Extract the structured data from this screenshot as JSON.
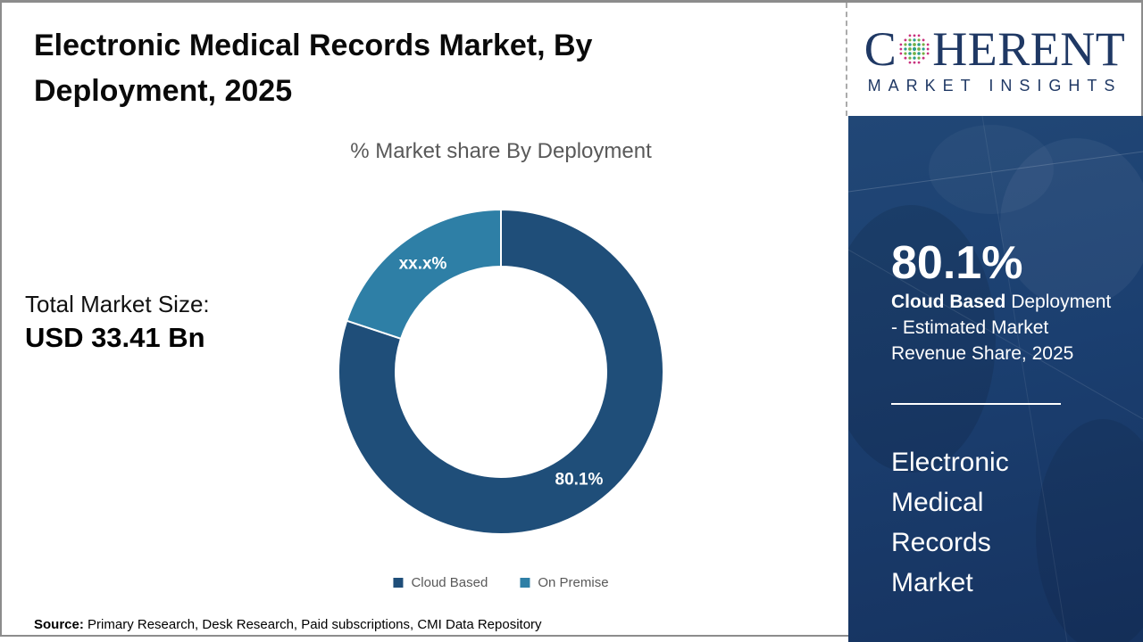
{
  "page": {
    "title": "Electronic Medical Records Market, By Deployment, 2025",
    "title_lines": [
      "Electronic Medical Records Market, By",
      "Deployment, 2025"
    ]
  },
  "logo": {
    "name": "Coherent Market Insights",
    "word_prefix": "C",
    "word_suffix": "HERENT",
    "tagline": "MARKET INSIGHTS",
    "navy": "#1F3864",
    "sphere_colors": {
      "teal": "#2BA08C",
      "green": "#76B043",
      "pink": "#C9317E"
    }
  },
  "total_market": {
    "label": "Total Market Size:",
    "value": "USD 33.41 Bn"
  },
  "chart_data": {
    "type": "donut",
    "title": "% Market share By Deployment",
    "categories": [
      "Cloud Based",
      "On Premise"
    ],
    "series": [
      {
        "name": "Cloud Based",
        "value": 80.1,
        "display_label": "80.1%",
        "color": "#1F4E79"
      },
      {
        "name": "On Premise",
        "value": 19.9,
        "display_label": "xx.x%",
        "color": "#2E7FA6"
      }
    ],
    "start_angle_deg": 0,
    "direction": "clockwise",
    "inner_radius_ratio": 0.65,
    "separator_color": "#FFFFFF",
    "label_color": "#FFFFFF",
    "legend_position": "bottom"
  },
  "sidebar": {
    "stat_value": "80.1%",
    "stat_desc_bold": "Cloud Based",
    "stat_desc_rest": "Deployment - Estimated Market Revenue Share, 2025",
    "market_name": "Electronic Medical Records Market",
    "market_name_lines": [
      "Electronic",
      "Medical",
      "Records",
      "Market"
    ],
    "bg_color": "#1B3C6C"
  },
  "footer": {
    "source_label": "Source:",
    "source_text": "Primary Research, Desk Research, Paid subscriptions, CMI Data Repository"
  }
}
